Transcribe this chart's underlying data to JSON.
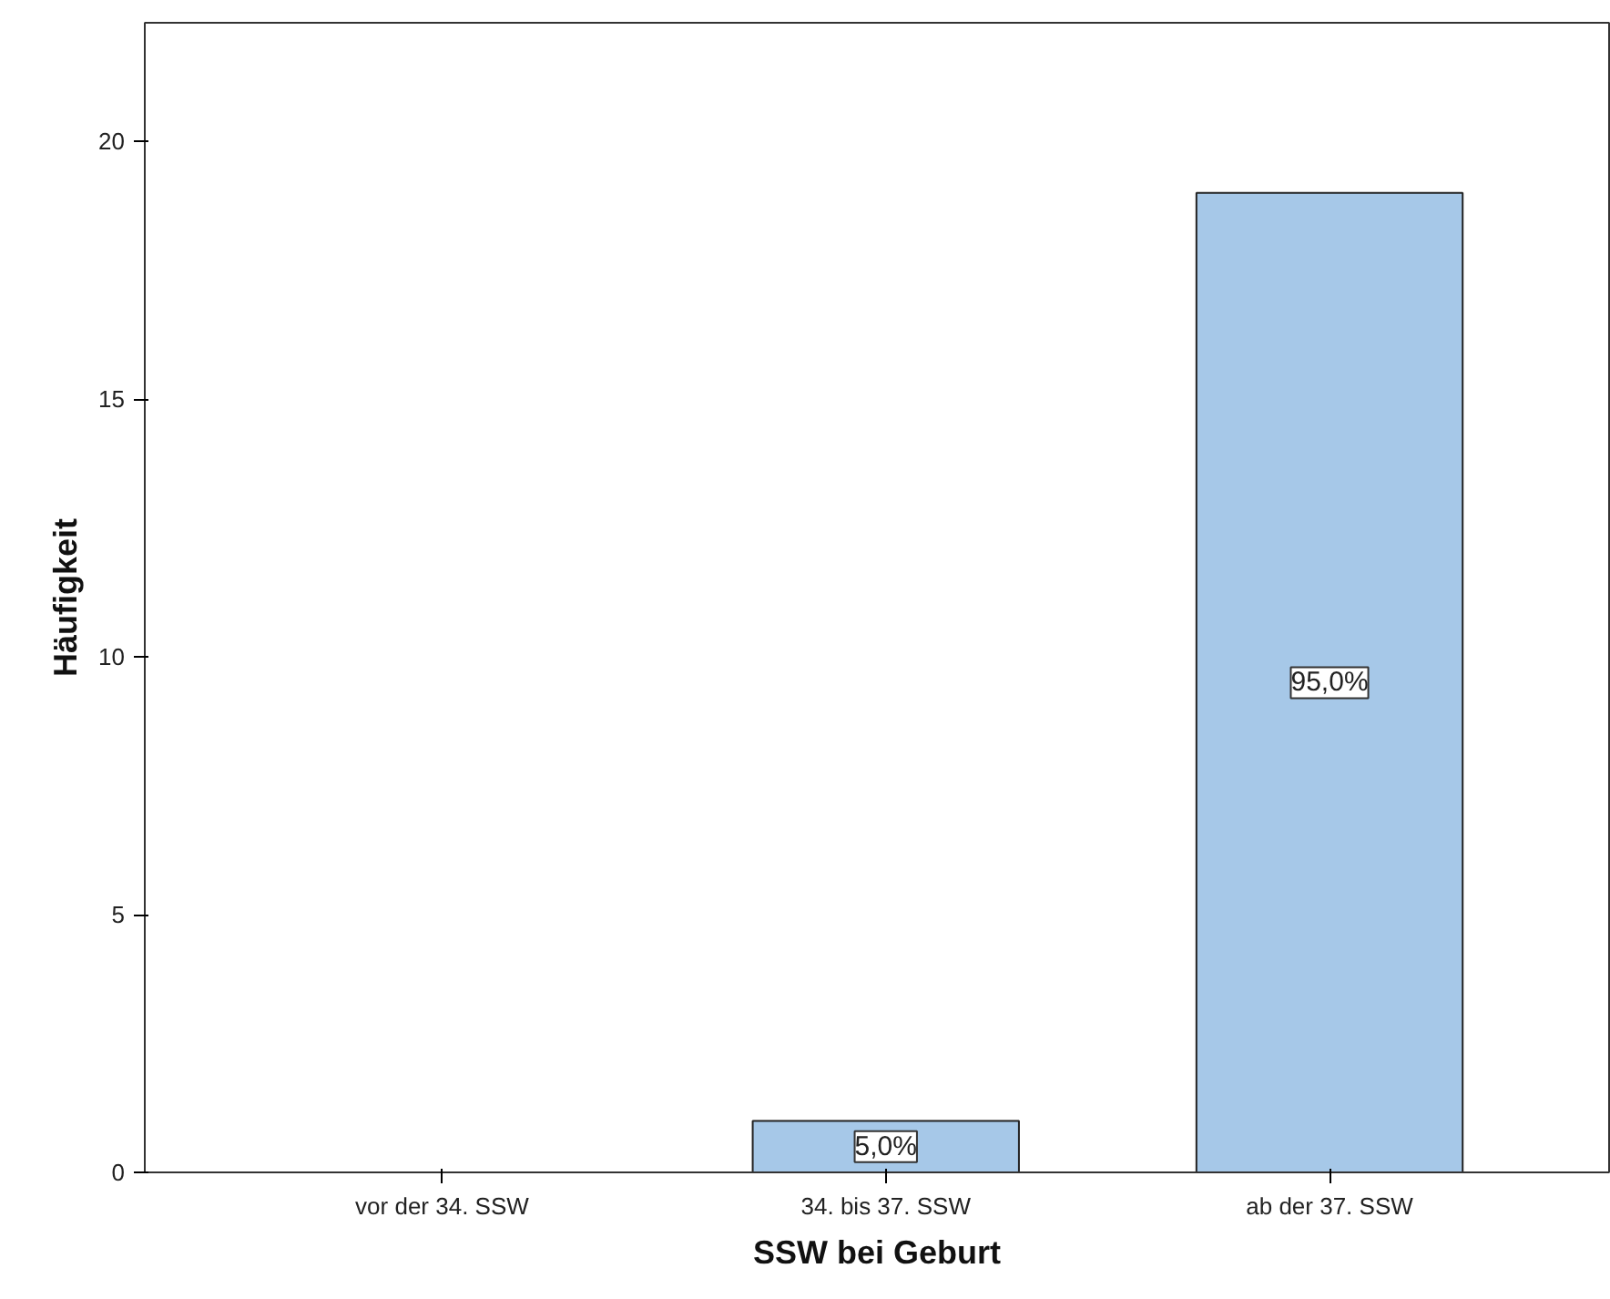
{
  "chart_data": {
    "type": "bar",
    "xlabel": "SSW bei Geburt",
    "ylabel": "Häufigkeit",
    "categories": [
      "vor der 34. SSW",
      "34. bis 37. SSW",
      "ab der 37. SSW"
    ],
    "values": [
      0,
      1,
      19
    ],
    "annotations": [
      {
        "text": "5,0%",
        "x": "34. bis 37. SSW",
        "y": 0.5
      },
      {
        "text": "95,0%",
        "x": "ab der 37. SSW",
        "y": 9.5
      }
    ],
    "color": "#a6c8e8",
    "ylim": [
      0,
      22.3
    ],
    "yticks": [
      0,
      5,
      10,
      15,
      20
    ],
    "grid": false
  }
}
